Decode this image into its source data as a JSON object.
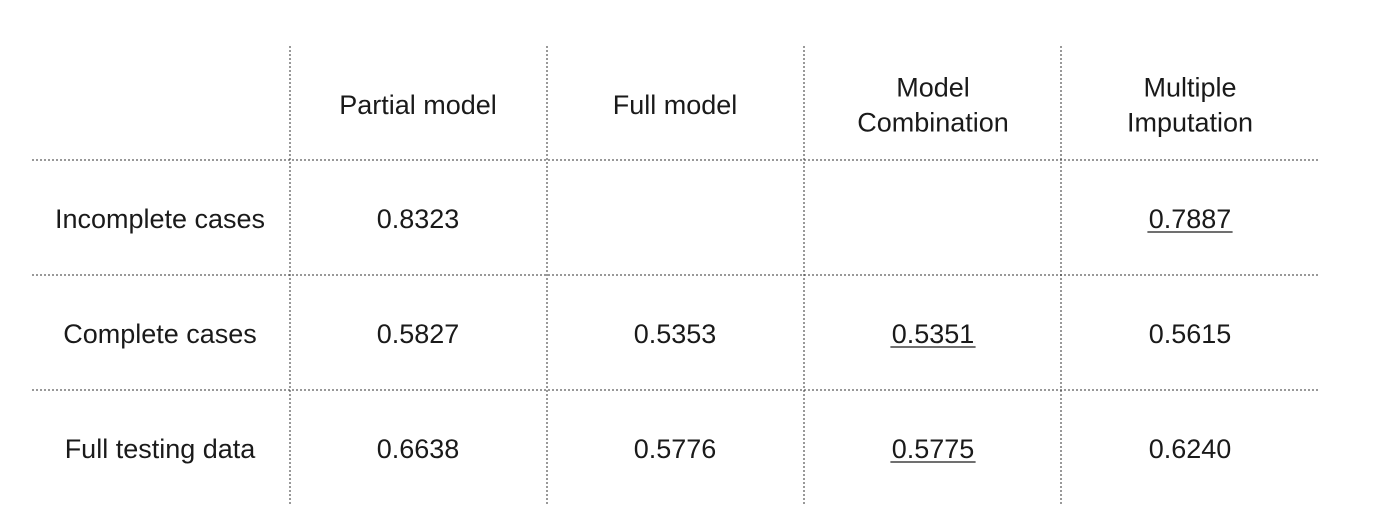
{
  "chart_data": {
    "type": "table",
    "columns": [
      "",
      "Partial model",
      "Full model",
      "Model Combination",
      "Multiple Imputation"
    ],
    "column_header_lines": [
      [],
      [
        "Partial model"
      ],
      [
        "Full model"
      ],
      [
        "Model",
        "Combination"
      ],
      [
        "Multiple",
        "Imputation"
      ]
    ],
    "rows": [
      {
        "label": "Incomplete cases",
        "values": [
          "0.8323",
          "",
          "",
          "0.7887"
        ],
        "underlined": [
          false,
          false,
          false,
          true
        ]
      },
      {
        "label": "Complete cases",
        "values": [
          "0.5827",
          "0.5353",
          "0.5351",
          "0.5615"
        ],
        "underlined": [
          false,
          false,
          true,
          false
        ]
      },
      {
        "label": "Full testing data",
        "values": [
          "0.6638",
          "0.5776",
          "0.5775",
          "0.6240"
        ],
        "underlined": [
          false,
          false,
          true,
          false
        ]
      }
    ],
    "grid": "dotted"
  }
}
